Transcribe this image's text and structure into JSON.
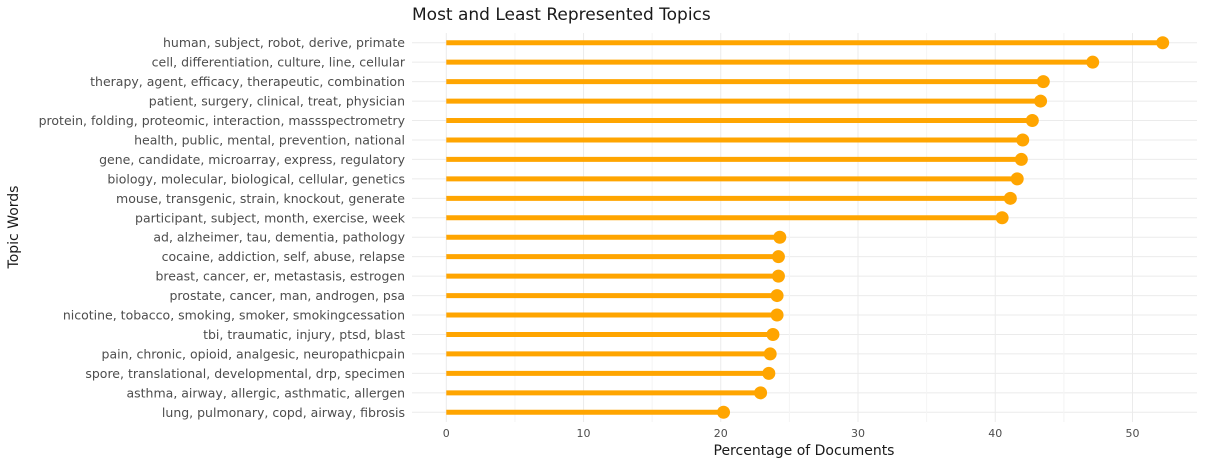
{
  "chart_data": {
    "type": "lollipop",
    "title": "Most and Least Represented Topics",
    "xlabel": "Percentage of Documents",
    "ylabel": "Topic Words",
    "xlim": [
      -2.5,
      54.7
    ],
    "xticks": [
      0,
      10,
      20,
      30,
      40,
      50
    ],
    "grid": true,
    "categories": [
      "human, subject, robot, derive, primate",
      "cell, differentiation, culture, line, cellular",
      "therapy, agent, efficacy, therapeutic, combination",
      "patient, surgery, clinical, treat, physician",
      "protein, folding, proteomic, interaction, massspectrometry",
      "health, public, mental, prevention, national",
      "gene, candidate, microarray, express, regulatory",
      "biology, molecular, biological, cellular, genetics",
      "mouse, transgenic, strain, knockout, generate",
      "participant, subject, month, exercise, week",
      "ad, alzheimer, tau, dementia, pathology",
      "cocaine, addiction, self, abuse, relapse",
      "breast, cancer, er, metastasis, estrogen",
      "prostate, cancer, man, androgen, psa",
      "nicotine, tobacco, smoking, smoker, smokingcessation",
      "tbi, traumatic, injury, ptsd, blast",
      "pain, chronic, opioid, analgesic, neuropathicpain",
      "spore, translational, developmental, drp, specimen",
      "asthma, airway, allergic, asthmatic, allergen",
      "lung, pulmonary, copd, airway, fibrosis"
    ],
    "values": [
      52.2,
      47.1,
      43.5,
      43.3,
      42.7,
      42.0,
      41.9,
      41.6,
      41.1,
      40.5,
      24.3,
      24.2,
      24.2,
      24.1,
      24.1,
      23.8,
      23.6,
      23.5,
      22.9,
      20.2
    ],
    "colors": {
      "stem": "#FFA500",
      "point": "#FFA500",
      "grid_major": "#EBEBEB",
      "grid_minor": "#F4F4F4"
    }
  }
}
